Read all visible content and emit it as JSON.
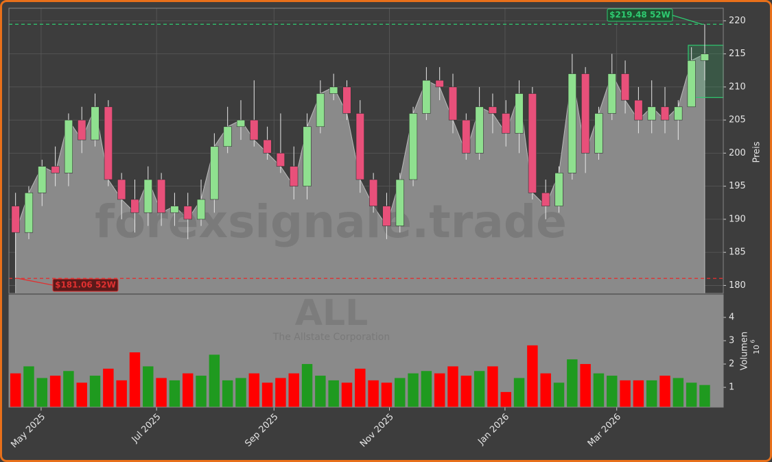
{
  "chart_data": {
    "type": "candlestick",
    "x": [
      0.5,
      1.5,
      2.5,
      3.5,
      4.5,
      5.5,
      6.5,
      7.5,
      8.5,
      9.5,
      10.5,
      11.5,
      12.5,
      13.5,
      14.5,
      15.5,
      16.5,
      17.5,
      18.5,
      19.5,
      20.5,
      21.5,
      22.5,
      23.5,
      24.5,
      25.5,
      26.5,
      27.5,
      28.5,
      29.5,
      30.5,
      31.5,
      32.5,
      33.5,
      34.5,
      35.5,
      36.5,
      37.5,
      38.5,
      39.5,
      40.5,
      41.5,
      42.5,
      43.5,
      44.5,
      45.5,
      46.5,
      47.5,
      48.5,
      49.5,
      50.5,
      51.5,
      52.5
    ],
    "xlim": [
      0,
      53.9
    ],
    "xticks": [
      {
        "value": 2.43,
        "label": "May 2025"
      },
      {
        "value": 11.14,
        "label": "Jul 2025"
      },
      {
        "value": 20.0,
        "label": "Sep 2025"
      },
      {
        "value": 28.71,
        "label": "Nov 2025"
      },
      {
        "value": 37.43,
        "label": "Jan 2026"
      },
      {
        "value": 45.86,
        "label": "Mar 2026"
      }
    ],
    "open": [
      192,
      188,
      194,
      198,
      197,
      205,
      202,
      207,
      196,
      193,
      191,
      196,
      191,
      192,
      190,
      193,
      201,
      204,
      205,
      202,
      200,
      198,
      195,
      204,
      209,
      210,
      206,
      196,
      192,
      189,
      196,
      206,
      211,
      210,
      205,
      200,
      207,
      206,
      203,
      209,
      194,
      192,
      197,
      212,
      200,
      206,
      212,
      208,
      205,
      207,
      205,
      207,
      214
    ],
    "high": [
      194,
      195,
      199,
      201,
      206,
      207,
      209,
      208,
      197,
      196,
      198,
      197,
      194,
      194,
      196,
      203,
      207,
      208,
      211,
      204,
      206,
      201,
      206,
      211,
      212,
      211,
      208,
      197,
      194,
      197,
      207,
      213,
      213,
      212,
      206,
      210,
      209,
      208,
      211,
      210,
      196,
      198,
      215,
      213,
      207,
      215,
      214,
      210,
      211,
      210,
      208,
      216,
      219.48
    ],
    "low": [
      181.06,
      187,
      192,
      195,
      195,
      200,
      201,
      195,
      190,
      188,
      189,
      189,
      189,
      187,
      189,
      191,
      200,
      202,
      201,
      199,
      197,
      193,
      193,
      203,
      208,
      205,
      194,
      191,
      187,
      188,
      195,
      205,
      208,
      203,
      199,
      199,
      203,
      201,
      200,
      193,
      190,
      191,
      196,
      197,
      199,
      205,
      206,
      203,
      203,
      203,
      202,
      207,
      211
    ],
    "close": [
      188,
      194,
      198,
      197,
      205,
      202,
      207,
      196,
      193,
      191,
      196,
      191,
      192,
      190,
      193,
      201,
      204,
      205,
      202,
      200,
      198,
      195,
      204,
      209,
      210,
      206,
      196,
      192,
      189,
      196,
      206,
      211,
      210,
      205,
      200,
      207,
      206,
      203,
      209,
      194,
      192,
      197,
      212,
      200,
      206,
      212,
      208,
      205,
      207,
      205,
      207,
      214,
      215
    ],
    "up_color": "#8fe08f",
    "down_color": "#e8507a",
    "area_color": "#8a8a8a",
    "ylim": [
      178.8,
      221.9
    ],
    "yticks": [
      180,
      185,
      190,
      195,
      200,
      205,
      210,
      215,
      220
    ],
    "ylabel": "Preis",
    "grid": true,
    "annotations": [
      {
        "value": 219.48,
        "label": "$219.48 52W",
        "color": "#2ecc71"
      },
      {
        "value": 181.06,
        "label": "$181.06 52W",
        "color": "#e03030"
      }
    ],
    "zone": {
      "low": 208.4,
      "high": 216.3
    },
    "watermarks": [
      "forexsignale.trade",
      "ALL",
      "The Allstate Corporation"
    ],
    "volume": {
      "values": [
        1.6,
        1.9,
        1.4,
        1.5,
        1.7,
        1.2,
        1.5,
        1.8,
        1.3,
        2.5,
        1.9,
        1.4,
        1.3,
        1.6,
        1.5,
        2.4,
        1.3,
        1.4,
        1.6,
        1.2,
        1.4,
        1.6,
        2.0,
        1.5,
        1.3,
        1.2,
        1.8,
        1.3,
        1.2,
        1.4,
        1.6,
        1.7,
        1.6,
        1.9,
        1.5,
        1.7,
        1.9,
        0.8,
        1.4,
        2.8,
        1.6,
        1.2,
        2.2,
        2.0,
        1.6,
        1.5,
        1.3,
        1.3,
        1.3,
        1.5,
        1.4,
        1.2,
        1.1
      ],
      "ylim": [
        0.15,
        4.97
      ],
      "yticks": [
        1,
        2,
        3,
        4
      ],
      "ylabel": "Volumen",
      "scale_base": "10",
      "scale_exponent": 6,
      "up_color": "#1f9a1f",
      "down_color": "#ff0000"
    }
  }
}
